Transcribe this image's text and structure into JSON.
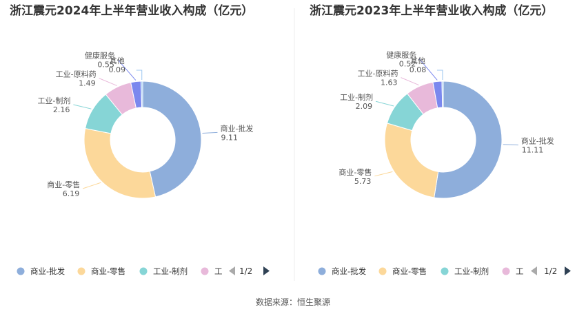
{
  "source": "数据来源：恒生聚源",
  "pager_label": "1/2",
  "chart_data": [
    {
      "type": "pie",
      "variant": "donut",
      "title": "浙江震元2024年上半年营业收入构成（亿元）",
      "legend_position": "bottom",
      "legend_visible": [
        "商业-批发",
        "商业-零售",
        "工业-制剂",
        "工"
      ],
      "slices": [
        {
          "name": "商业-批发",
          "value": 9.11,
          "value_label": "9.11",
          "color": "#8eaedb"
        },
        {
          "name": "商业-零售",
          "value": 6.19,
          "value_label": "6.19",
          "color": "#fcd89a"
        },
        {
          "name": "工业-制剂",
          "value": 2.16,
          "value_label": "2.16",
          "color": "#86d5d6"
        },
        {
          "name": "工业-原料药",
          "value": 1.49,
          "value_label": "1.49",
          "color": "#e8b9da"
        },
        {
          "name": "健康服务",
          "value": 0.55,
          "value_label": "0.55",
          "color": "#7b88ee"
        },
        {
          "name": "其他",
          "value": 0.09,
          "value_label": "0.09",
          "color": "#9cc7f0"
        }
      ]
    },
    {
      "type": "pie",
      "variant": "donut",
      "title": "浙江震元2023年上半年营业收入构成（亿元）",
      "legend_position": "bottom",
      "legend_visible": [
        "商业-批发",
        "商业-零售",
        "工业-制剂",
        "工"
      ],
      "slices": [
        {
          "name": "商业-批发",
          "value": 11.11,
          "value_label": "11.11",
          "color": "#8eaedb"
        },
        {
          "name": "商业-零售",
          "value": 5.73,
          "value_label": "5.73",
          "color": "#fcd89a"
        },
        {
          "name": "工业-制剂",
          "value": 2.09,
          "value_label": "2.09",
          "color": "#86d5d6"
        },
        {
          "name": "工业-原料药",
          "value": 1.63,
          "value_label": "1.63",
          "color": "#e8b9da"
        },
        {
          "name": "健康服务",
          "value": 0.52,
          "value_label": "0.52",
          "color": "#7b88ee"
        },
        {
          "name": "其他",
          "value": 0.08,
          "value_label": "0.08",
          "color": "#9cc7f0"
        }
      ]
    }
  ]
}
